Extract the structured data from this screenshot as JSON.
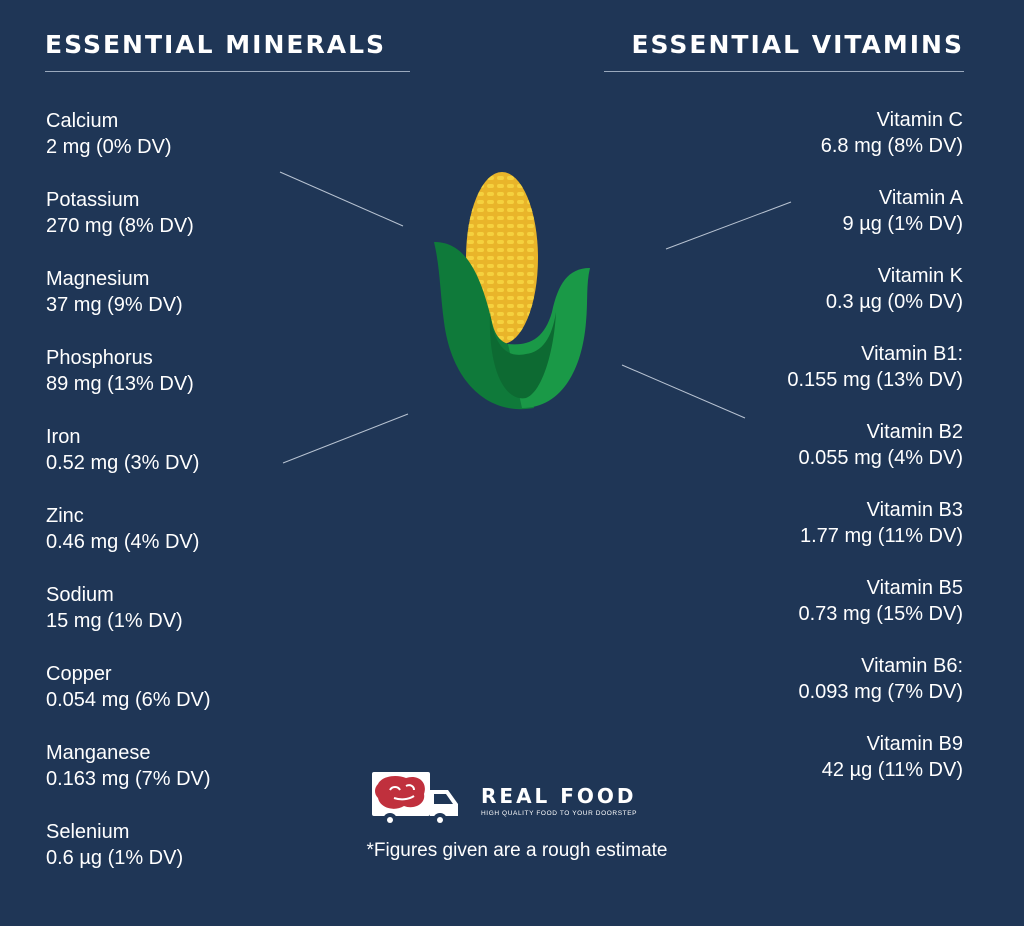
{
  "minerals": {
    "heading": "ESSENTIAL MINERALS",
    "items": [
      {
        "name": "Calcium",
        "amount": "2 mg (0% DV)"
      },
      {
        "name": "Potassium",
        "amount": "270 mg (8% DV)"
      },
      {
        "name": "Magnesium",
        "amount": "37 mg (9% DV)"
      },
      {
        "name": "Phosphorus",
        "amount": "89 mg (13% DV)"
      },
      {
        "name": "Iron",
        "amount": "0.52 mg (3% DV)"
      },
      {
        "name": "Zinc",
        "amount": "0.46 mg (4% DV)"
      },
      {
        "name": "Sodium",
        "amount": "15 mg (1% DV)"
      },
      {
        "name": "Copper",
        "amount": "0.054 mg (6% DV)"
      },
      {
        "name": "Manganese",
        "amount": "0.163 mg (7% DV)"
      },
      {
        "name": "Selenium",
        "amount": "0.6 µg (1% DV)"
      }
    ]
  },
  "vitamins": {
    "heading": "ESSENTIAL VITAMINS",
    "items": [
      {
        "name": "Vitamin C",
        "amount": "6.8 mg (8% DV)"
      },
      {
        "name": "Vitamin A",
        "amount": "9 µg (1% DV)"
      },
      {
        "name": "Vitamin K",
        "amount": "0.3 µg (0% DV)"
      },
      {
        "name": "Vitamin B1:",
        "amount": "0.155 mg (13% DV)"
      },
      {
        "name": "Vitamin B2",
        "amount": "0.055 mg (4% DV)"
      },
      {
        "name": "Vitamin B3",
        "amount": "1.77 mg (11% DV)"
      },
      {
        "name": "Vitamin B5",
        "amount": "0.73 mg (15% DV)"
      },
      {
        "name": "Vitamin B6:",
        "amount": "0.093 mg (7% DV)"
      },
      {
        "name": "Vitamin B9",
        "amount": "42 µg (11% DV)"
      }
    ]
  },
  "illustration": {
    "icon": "corn-icon"
  },
  "logo": {
    "icon": "delivery-truck-icon",
    "brand": "REAL FOOD",
    "tagline": "HIGH QUALITY FOOD TO YOUR DOORSTEP"
  },
  "footnote": "*Figures given are a rough estimate",
  "colors": {
    "background": "#1f3656",
    "text": "#ffffff",
    "corn_kernel": "#f2c530",
    "husk_dark": "#0f7a3a",
    "husk_light": "#1a9947",
    "truck_meat": "#c0303d"
  }
}
